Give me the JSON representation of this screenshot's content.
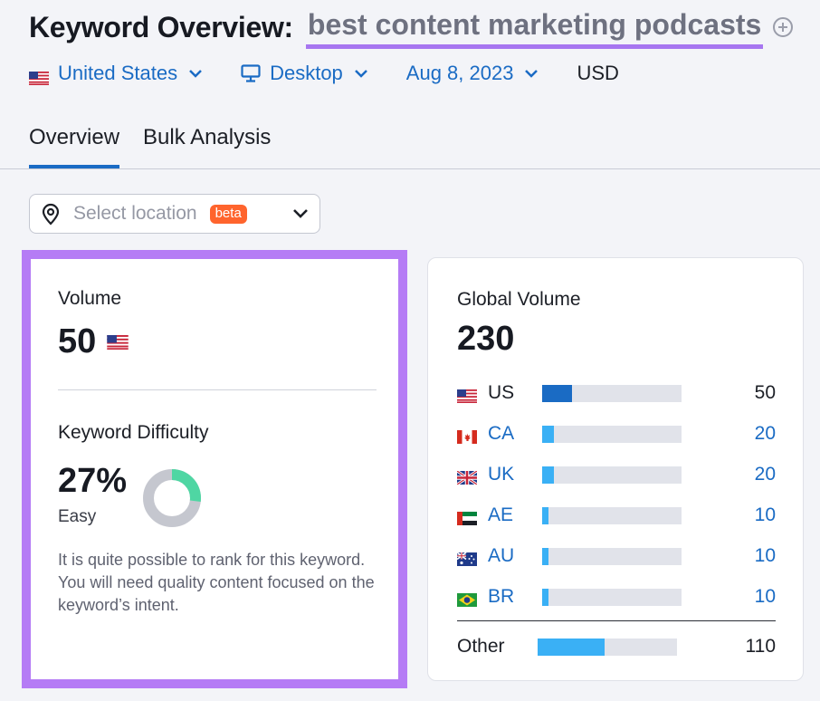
{
  "header": {
    "title_label": "Keyword Overview:",
    "keyword": "best content marketing podcasts"
  },
  "filters": {
    "country": "United States",
    "device": "Desktop",
    "date": "Aug 8, 2023",
    "currency": "USD"
  },
  "tabs": [
    {
      "label": "Overview",
      "active": true
    },
    {
      "label": "Bulk Analysis",
      "active": false
    }
  ],
  "location": {
    "placeholder": "Select location",
    "badge": "beta"
  },
  "volume_card": {
    "volume_label": "Volume",
    "volume_value": "50",
    "kd_label": "Keyword Difficulty",
    "kd_value": "27%",
    "kd_percent": 27,
    "kd_level": "Easy",
    "kd_note": "It is quite possible to rank for this keyword. You will need quality content focused on the keyword’s intent.",
    "kd_color": "#4fd6a3",
    "kd_track_color": "#c5c7cf"
  },
  "global_card": {
    "label": "Global Volume",
    "value": "230",
    "rows": [
      {
        "code": "US",
        "flag": "us-flag",
        "value": "50",
        "share": 0.217,
        "color": "#1a6bc4"
      },
      {
        "code": "CA",
        "flag": "ca-flag",
        "value": "20",
        "share": 0.087,
        "color": "#3ab0f5"
      },
      {
        "code": "UK",
        "flag": "uk-flag",
        "value": "20",
        "share": 0.087,
        "color": "#3ab0f5"
      },
      {
        "code": "AE",
        "flag": "ae-flag",
        "value": "10",
        "share": 0.043,
        "color": "#3ab0f5"
      },
      {
        "code": "AU",
        "flag": "au-flag",
        "value": "10",
        "share": 0.043,
        "color": "#3ab0f5"
      },
      {
        "code": "BR",
        "flag": "br-flag",
        "value": "10",
        "share": 0.043,
        "color": "#3ab0f5"
      }
    ],
    "other": {
      "label": "Other",
      "value": "110",
      "share": 0.478,
      "color": "#3ab0f5"
    }
  },
  "colors": {
    "accent": "#1a6bc4",
    "highlight": "#b57cf5",
    "badge": "#ff642d"
  }
}
